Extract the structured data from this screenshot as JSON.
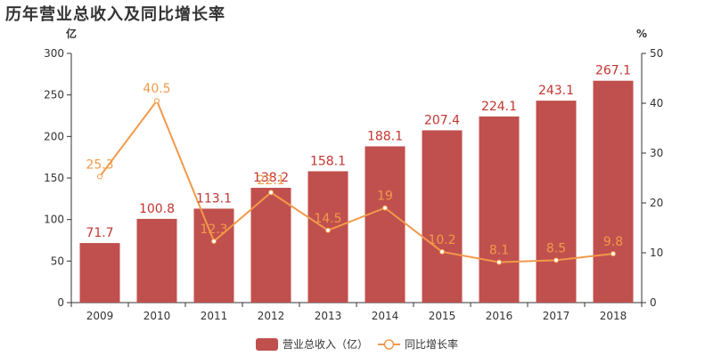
{
  "title": "历年营业总收入及同比增长率",
  "chart_data": {
    "type": "bar",
    "categories": [
      "2009",
      "2010",
      "2011",
      "2012",
      "2013",
      "2014",
      "2015",
      "2016",
      "2017",
      "2018"
    ],
    "series": [
      {
        "name": "营业总收入（亿）",
        "type": "bar",
        "axis": "left",
        "values": [
          71.7,
          100.8,
          113.1,
          138.2,
          158.1,
          188.1,
          207.4,
          224.1,
          243.1,
          267.1
        ]
      },
      {
        "name": "同比增长率",
        "type": "line",
        "axis": "right",
        "values": [
          25.3,
          40.5,
          12.3,
          22.1,
          14.5,
          19,
          10.2,
          8.1,
          8.5,
          9.8
        ]
      }
    ],
    "y_left": {
      "unit": "亿",
      "lim": [
        0,
        300
      ],
      "ticks": [
        0,
        50,
        100,
        150,
        200,
        250,
        300
      ]
    },
    "y_right": {
      "unit": "%",
      "lim": [
        0,
        50
      ],
      "ticks": [
        0,
        10,
        20,
        30,
        40,
        50
      ]
    },
    "legend_position": "bottom-center",
    "colors": {
      "bar": "#c0504d",
      "line": "#f2994a",
      "bar_label": "#c23531"
    }
  }
}
